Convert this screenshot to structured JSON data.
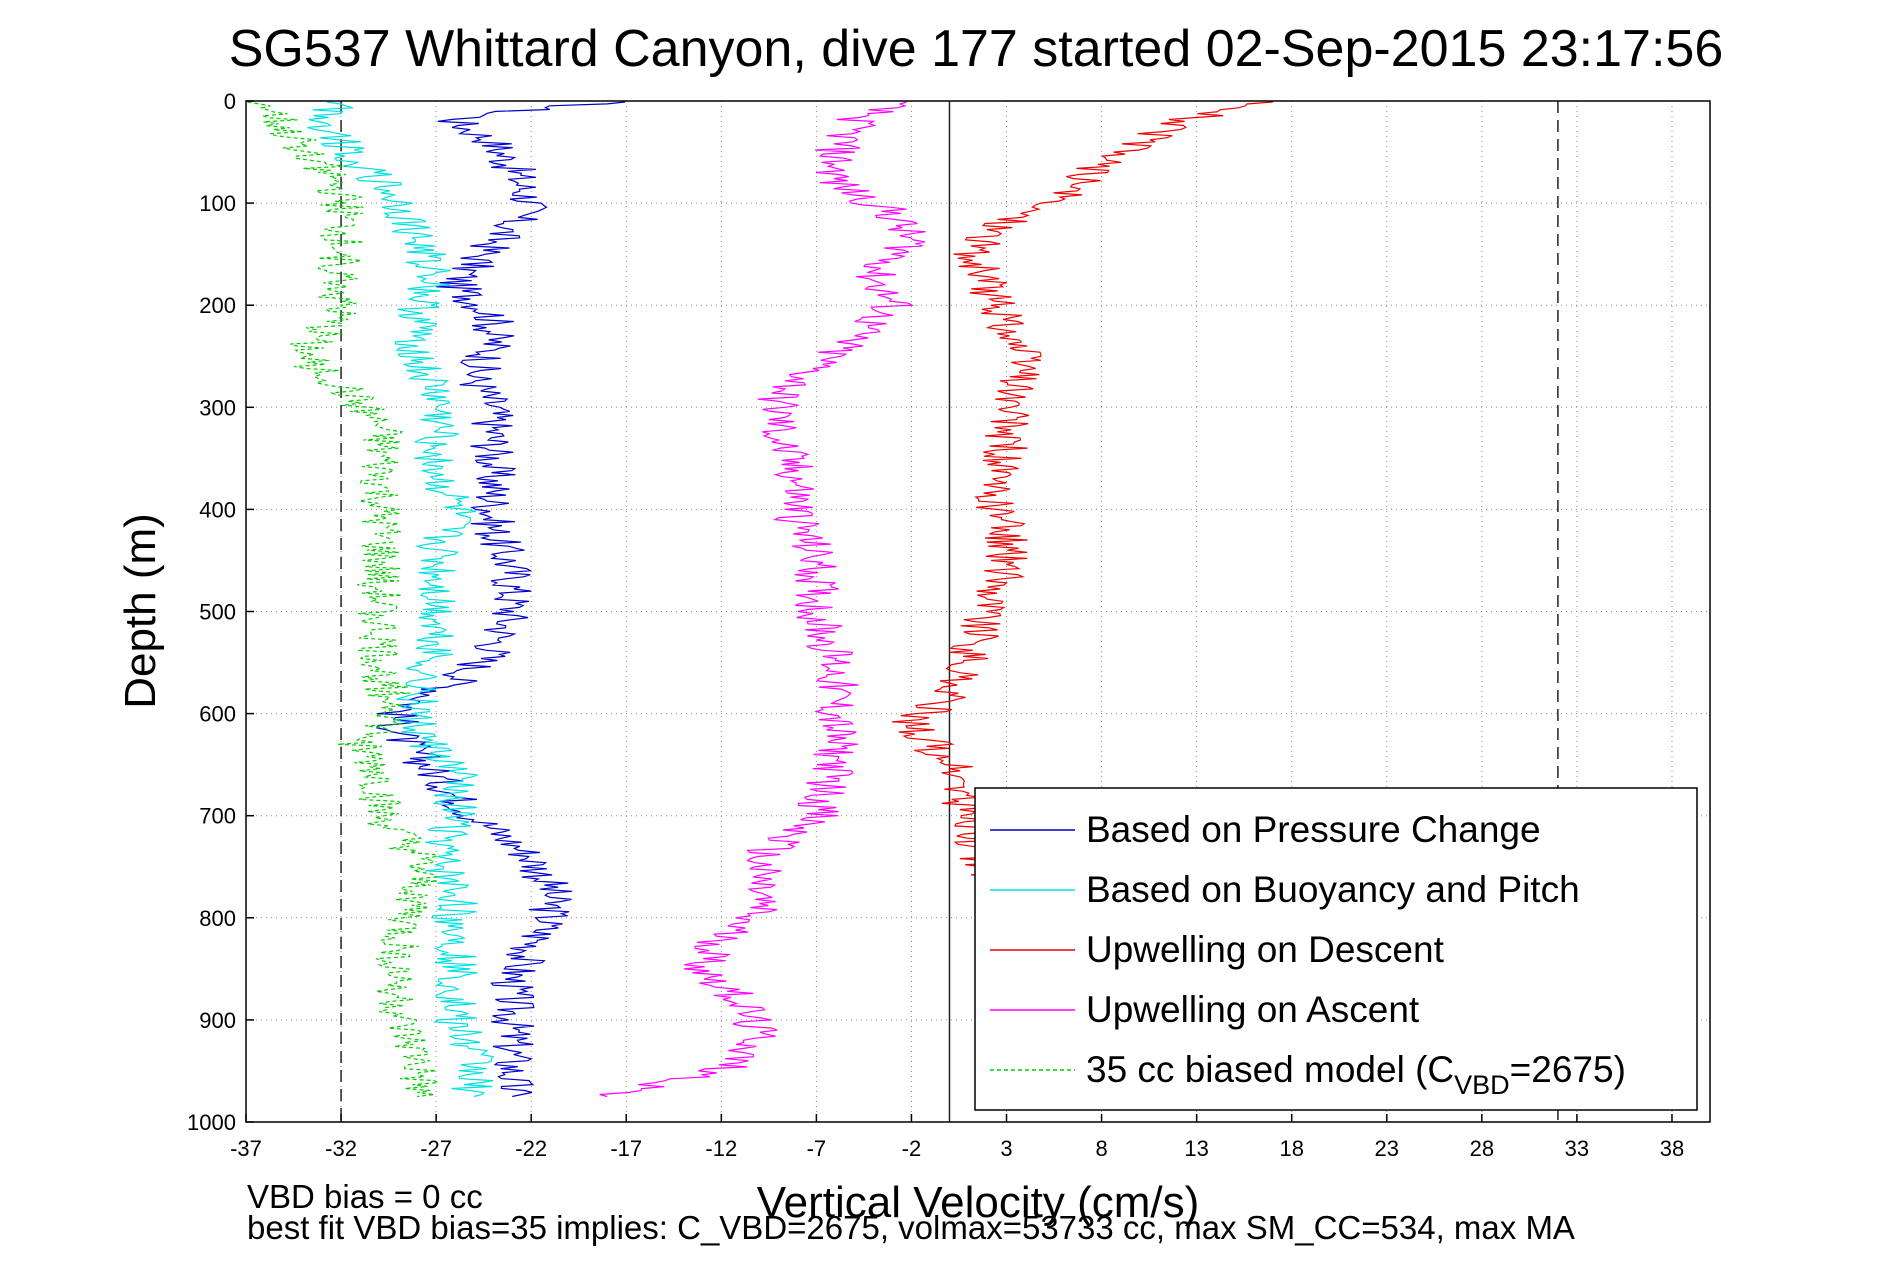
{
  "chart_data": {
    "type": "line",
    "title": "SG537 Whittard Canyon, dive 177 started 02-Sep-2015 23:17:56",
    "xlabel": "Vertical Velocity (cm/s)",
    "ylabel": "Depth (m)",
    "xlim": [
      -37,
      40
    ],
    "ylim": [
      0,
      1000
    ],
    "y_reversed": true,
    "grid": "dotted",
    "x_ticks": [
      -37,
      -32,
      -27,
      -22,
      -17,
      -12,
      -7,
      -2,
      3,
      8,
      13,
      18,
      23,
      28,
      33,
      38
    ],
    "y_ticks": [
      0,
      100,
      200,
      300,
      400,
      500,
      600,
      700,
      800,
      900,
      1000
    ],
    "reference_lines": [
      {
        "x": -32,
        "style": "dashed"
      },
      {
        "x": 32,
        "style": "dashed"
      },
      {
        "x": 0,
        "style": "solid"
      }
    ],
    "legend_position": "lower-right",
    "series": [
      {
        "name": "Based on Pressure Change",
        "color": "#0000cc",
        "points": [
          [
            -18,
            1
          ],
          [
            -24,
            12
          ],
          [
            -26,
            20
          ],
          [
            -24,
            40
          ],
          [
            -23,
            65
          ],
          [
            -22,
            100
          ],
          [
            -24,
            140
          ],
          [
            -26,
            180
          ],
          [
            -24,
            210
          ],
          [
            -24,
            240
          ],
          [
            -25,
            270
          ],
          [
            -24,
            300
          ],
          [
            -24,
            340
          ],
          [
            -24,
            380
          ],
          [
            -24,
            420
          ],
          [
            -23,
            460
          ],
          [
            -23,
            500
          ],
          [
            -24,
            540
          ],
          [
            -26,
            570
          ],
          [
            -29,
            600
          ],
          [
            -29,
            620
          ],
          [
            -27,
            660
          ],
          [
            -25,
            700
          ],
          [
            -22,
            740
          ],
          [
            -21,
            770
          ],
          [
            -21,
            800
          ],
          [
            -22,
            830
          ],
          [
            -23,
            860
          ],
          [
            -23,
            900
          ],
          [
            -23,
            940
          ],
          [
            -23,
            975
          ]
        ]
      },
      {
        "name": "Based on Buoyancy and Pitch",
        "color": "#00e0e0",
        "points": [
          [
            -32,
            1
          ],
          [
            -33,
            20
          ],
          [
            -31,
            60
          ],
          [
            -29,
            100
          ],
          [
            -28,
            140
          ],
          [
            -27,
            170
          ],
          [
            -28,
            200
          ],
          [
            -28,
            230
          ],
          [
            -28,
            260
          ],
          [
            -27,
            290
          ],
          [
            -27,
            330
          ],
          [
            -27,
            370
          ],
          [
            -26,
            400
          ],
          [
            -27,
            430
          ],
          [
            -27,
            470
          ],
          [
            -27,
            500
          ],
          [
            -27,
            540
          ],
          [
            -28,
            580
          ],
          [
            -28,
            620
          ],
          [
            -26,
            660
          ],
          [
            -26,
            700
          ],
          [
            -27,
            740
          ],
          [
            -26,
            780
          ],
          [
            -26,
            820
          ],
          [
            -26,
            860
          ],
          [
            -26,
            900
          ],
          [
            -25,
            940
          ],
          [
            -25,
            975
          ]
        ]
      },
      {
        "name": "Upwelling on Descent",
        "color": "#ee0000",
        "points": [
          [
            17,
            1
          ],
          [
            12,
            20
          ],
          [
            9,
            50
          ],
          [
            6,
            90
          ],
          [
            3,
            120
          ],
          [
            1,
            150
          ],
          [
            2,
            180
          ],
          [
            3,
            220
          ],
          [
            4,
            260
          ],
          [
            3,
            300
          ],
          [
            3,
            340
          ],
          [
            2,
            380
          ],
          [
            3,
            420
          ],
          [
            3,
            460
          ],
          [
            2,
            500
          ],
          [
            1,
            540
          ],
          [
            0,
            580
          ],
          [
            -2,
            610
          ],
          [
            0,
            650
          ],
          [
            1,
            700
          ],
          [
            2,
            760
          ]
        ]
      },
      {
        "name": "Upwelling on Ascent",
        "color": "#ff00ff",
        "points": [
          [
            -3,
            1
          ],
          [
            -5,
            20
          ],
          [
            -6,
            50
          ],
          [
            -6,
            80
          ],
          [
            -3,
            110
          ],
          [
            -2,
            140
          ],
          [
            -4,
            170
          ],
          [
            -3,
            200
          ],
          [
            -5,
            230
          ],
          [
            -7,
            260
          ],
          [
            -9,
            290
          ],
          [
            -9,
            330
          ],
          [
            -8,
            370
          ],
          [
            -8,
            410
          ],
          [
            -7,
            450
          ],
          [
            -7,
            500
          ],
          [
            -6,
            550
          ],
          [
            -6,
            600
          ],
          [
            -6,
            650
          ],
          [
            -7,
            700
          ],
          [
            -10,
            740
          ],
          [
            -10,
            790
          ],
          [
            -12,
            820
          ],
          [
            -13,
            850
          ],
          [
            -11,
            880
          ],
          [
            -10,
            920
          ],
          [
            -12,
            950
          ],
          [
            -18,
            975
          ]
        ]
      },
      {
        "name": "35 cc biased model (C",
        "name_subscript": "VBD",
        "name_suffix": "=2675)",
        "color": "#00cc00",
        "style": "dashed",
        "points": [
          [
            -36,
            1
          ],
          [
            -35,
            30
          ],
          [
            -33,
            60
          ],
          [
            -32,
            100
          ],
          [
            -32,
            150
          ],
          [
            -32,
            200
          ],
          [
            -34,
            250
          ],
          [
            -32,
            280
          ],
          [
            -30,
            320
          ],
          [
            -30,
            360
          ],
          [
            -30,
            400
          ],
          [
            -30,
            440
          ],
          [
            -30,
            480
          ],
          [
            -30,
            520
          ],
          [
            -30,
            560
          ],
          [
            -29,
            600
          ],
          [
            -31,
            630
          ],
          [
            -30,
            660
          ],
          [
            -30,
            700
          ],
          [
            -28,
            740
          ],
          [
            -28,
            780
          ],
          [
            -29,
            820
          ],
          [
            -29,
            860
          ],
          [
            -29,
            900
          ],
          [
            -28,
            940
          ],
          [
            -28,
            975
          ]
        ]
      }
    ],
    "annotations": [
      "VBD bias = 0 cc",
      "best fit VBD bias=35 implies: C_VBD=2675, volmax=53733 cc, max SM_CC=534, max MA"
    ]
  }
}
